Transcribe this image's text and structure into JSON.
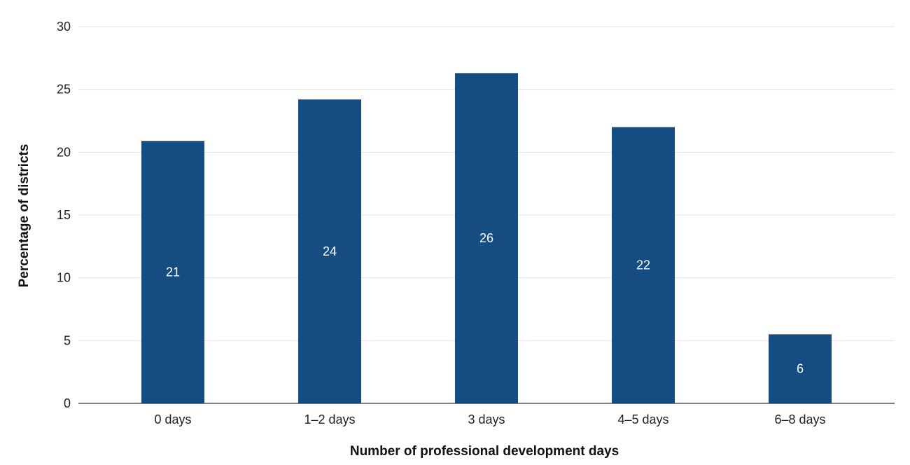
{
  "chart_data": {
    "type": "bar",
    "categories": [
      "0 days",
      "1–2 days",
      "3 days",
      "4–5 days",
      "6–8 days"
    ],
    "values": [
      20.9,
      24.2,
      26.3,
      22.0,
      5.5
    ],
    "data_labels": [
      "21",
      "24",
      "26",
      "22",
      "6"
    ],
    "title": "",
    "xlabel": "Number of professional development days",
    "ylabel": "Percentage of districts",
    "ylim": [
      0,
      30
    ],
    "yticks": [
      0,
      5,
      10,
      15,
      20,
      25,
      30
    ],
    "grid": true,
    "legend": "none",
    "bar_color": "#154c82",
    "grid_color": "#e3e3e3",
    "axis_color": "#333333"
  }
}
